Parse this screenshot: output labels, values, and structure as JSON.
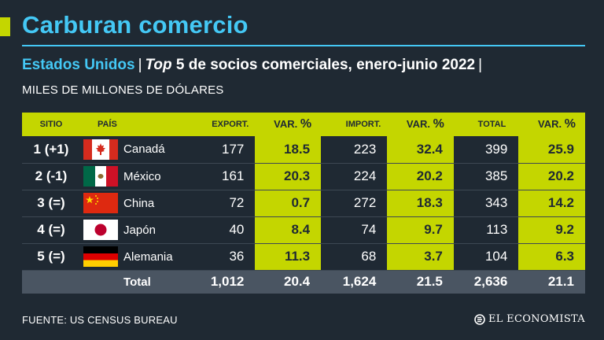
{
  "title": "Carburan comercio",
  "subtitle": {
    "country": "Estados Unidos",
    "separator": "|",
    "top": "Top",
    "description": "5 de socios comerciales, enero-junio 2022"
  },
  "unit": "MILES DE MILLONES DE DÓLARES",
  "table": {
    "headers": {
      "sitio": "SITIO",
      "pais": "PAÍS",
      "export": "EXPORT.",
      "var": "VAR.",
      "pct": "%",
      "import": "IMPORT.",
      "total": "TOTAL"
    },
    "rows": [
      {
        "sitio": "1 (+1)",
        "pais": "Canadá",
        "flag": "canada-flag-icon",
        "export": "177",
        "export_var": "18.5",
        "import": "223",
        "import_var": "32.4",
        "total": "399",
        "total_var": "25.9"
      },
      {
        "sitio": "2 (-1)",
        "pais": "México",
        "flag": "mexico-flag-icon",
        "export": "161",
        "export_var": "20.3",
        "import": "224",
        "import_var": "20.2",
        "total": "385",
        "total_var": "20.2"
      },
      {
        "sitio": "3 (=)",
        "pais": "China",
        "flag": "china-flag-icon",
        "export": "72",
        "export_var": "0.7",
        "import": "272",
        "import_var": "18.3",
        "total": "343",
        "total_var": "14.2"
      },
      {
        "sitio": "4 (=)",
        "pais": "Japón",
        "flag": "japan-flag-icon",
        "export": "40",
        "export_var": "8.4",
        "import": "74",
        "import_var": "9.7",
        "total": "113",
        "total_var": "9.2"
      },
      {
        "sitio": "5 (=)",
        "pais": "Alemania",
        "flag": "germany-flag-icon",
        "export": "36",
        "export_var": "11.3",
        "import": "68",
        "import_var": "3.7",
        "total": "104",
        "total_var": "6.3"
      }
    ],
    "total_row": {
      "label": "Total",
      "export": "1,012",
      "export_var": "20.4",
      "import": "1,624",
      "import_var": "21.5",
      "total": "2,636",
      "total_var": "21.1"
    }
  },
  "source": "FUENTE: US CENSUS BUREAU",
  "logo": "EL ECONOMISTA",
  "colors": {
    "accent": "#c4d600",
    "brand_blue": "#44c8f5",
    "background": "#1f2933",
    "total_row": "#4a5562"
  }
}
